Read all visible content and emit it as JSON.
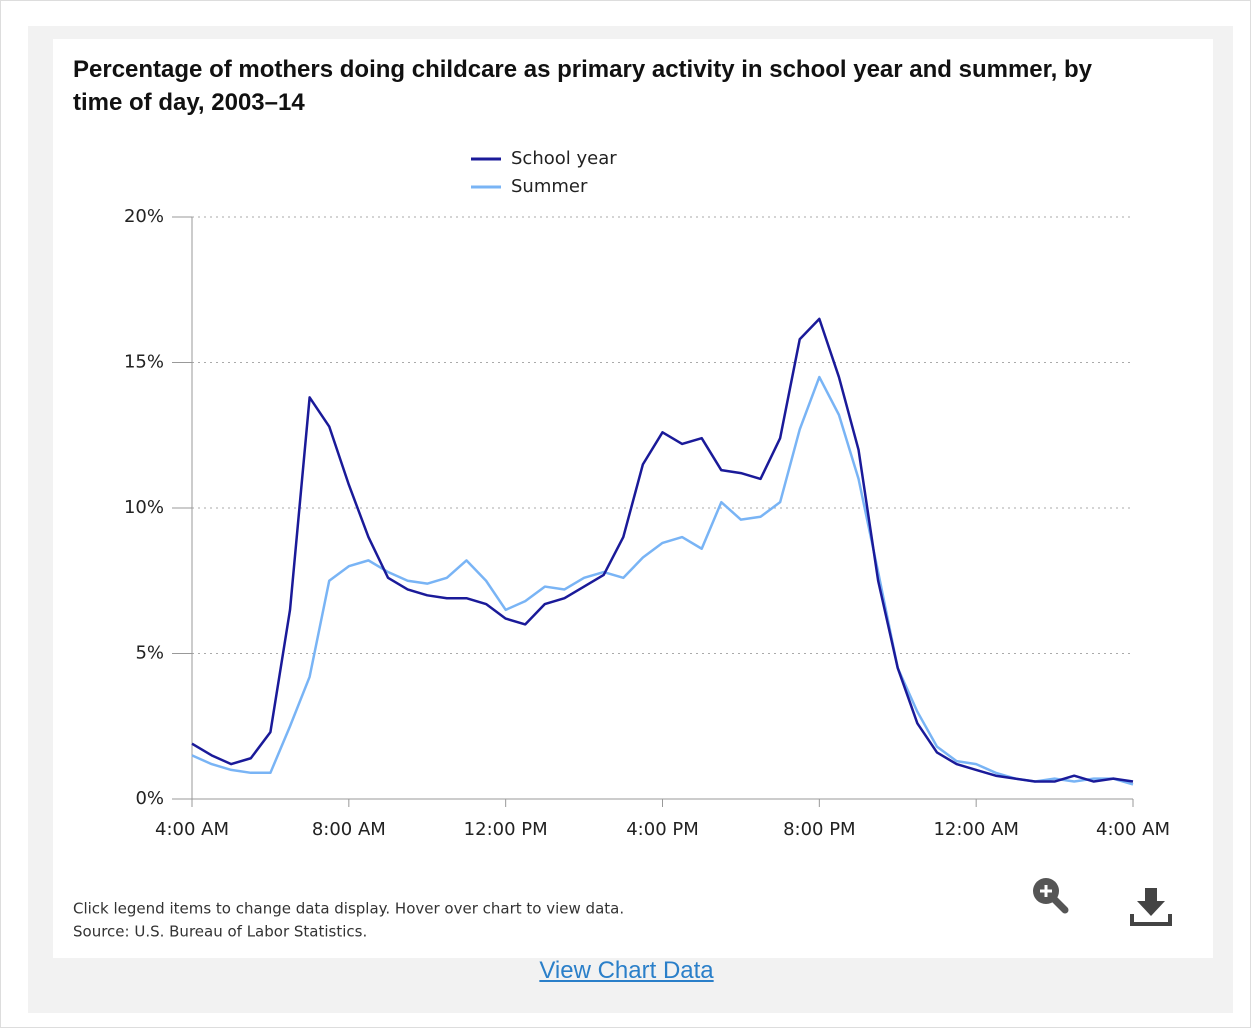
{
  "chart_data": {
    "type": "line",
    "title": "Percentage of mothers doing childcare as primary activity in school year and summer, by time of day, 2003–14",
    "categories": [
      "4:00 AM",
      null,
      null,
      null,
      null,
      null,
      null,
      null,
      "8:00 AM",
      null,
      null,
      null,
      null,
      null,
      null,
      null,
      "12:00 PM",
      null,
      null,
      null,
      null,
      null,
      null,
      null,
      "4:00 PM",
      null,
      null,
      null,
      null,
      null,
      null,
      null,
      "8:00 PM",
      null,
      null,
      null,
      null,
      null,
      null,
      null,
      "12:00 AM",
      null,
      null,
      null,
      null,
      null,
      null,
      null,
      "4:00 AM"
    ],
    "series": [
      {
        "name": "School year",
        "color": "#1a1a99",
        "values": [
          1.9,
          1.5,
          1.2,
          1.4,
          2.3,
          6.5,
          13.8,
          12.8,
          10.8,
          9.0,
          7.6,
          7.2,
          7.0,
          6.9,
          6.9,
          6.7,
          6.2,
          6.0,
          6.7,
          6.9,
          7.3,
          7.7,
          9.0,
          11.5,
          12.6,
          12.2,
          12.4,
          11.3,
          11.2,
          11.0,
          12.4,
          15.8,
          16.5,
          14.5,
          12.0,
          7.5,
          4.5,
          2.6,
          1.6,
          1.2,
          1.0,
          0.8,
          0.7,
          0.6,
          0.6,
          0.8,
          0.6,
          0.7,
          0.6
        ]
      },
      {
        "name": "Summer",
        "color": "#79b4f5",
        "values": [
          1.5,
          1.2,
          1.0,
          0.9,
          0.9,
          2.5,
          4.2,
          7.5,
          8.0,
          8.2,
          7.8,
          7.5,
          7.4,
          7.6,
          8.2,
          7.5,
          6.5,
          6.8,
          7.3,
          7.2,
          7.6,
          7.8,
          7.6,
          8.3,
          8.8,
          9.0,
          8.6,
          10.2,
          9.6,
          9.7,
          10.2,
          12.7,
          14.5,
          13.2,
          11.0,
          7.8,
          4.5,
          3.0,
          1.8,
          1.3,
          1.2,
          0.9,
          0.7,
          0.6,
          0.7,
          0.6,
          0.7,
          0.7,
          0.5
        ]
      }
    ],
    "ylim": [
      0,
      20
    ],
    "yticks": [
      {
        "value": 0,
        "label": "0%"
      },
      {
        "value": 5,
        "label": "5%"
      },
      {
        "value": 10,
        "label": "10%"
      },
      {
        "value": 15,
        "label": "15%"
      },
      {
        "value": 20,
        "label": "20%"
      }
    ],
    "grid": true,
    "legend": "top",
    "notes": [
      "Click legend items to change data display. Hover over chart to view data.",
      "Source: U.S. Bureau of Labor Statistics."
    ],
    "link": "View Chart Data"
  }
}
